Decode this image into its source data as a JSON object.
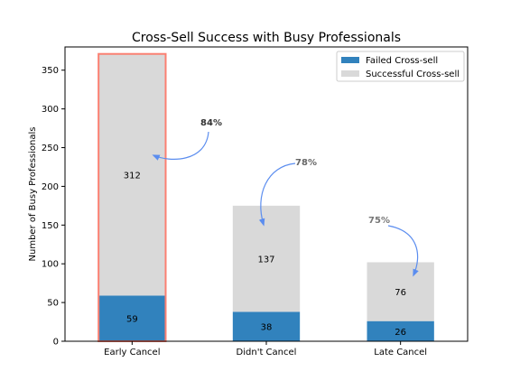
{
  "chart_data": {
    "type": "bar",
    "stacked": true,
    "title": "Cross-Sell Success with Busy Professionals",
    "xlabel": "",
    "ylabel": "Number of Busy Professionals",
    "categories": [
      "Early Cancel",
      "Didn't Cancel",
      "Late Cancel"
    ],
    "series": [
      {
        "name": "Failed Cross-sell",
        "values": [
          59,
          38,
          26
        ],
        "color": "#3182bd"
      },
      {
        "name": "Successful Cross-sell",
        "values": [
          312,
          137,
          76
        ],
        "color": "#d9d9d9"
      }
    ],
    "ylim": [
      0,
      380
    ],
    "yticks": [
      0,
      50,
      100,
      150,
      200,
      250,
      300,
      350
    ],
    "grid": false,
    "legend_position": "top-right",
    "highlight": {
      "category": "Early Cancel",
      "color": "#fb8072"
    },
    "annotations": [
      {
        "text": "84%",
        "category": "Early Cancel",
        "color": "#333333"
      },
      {
        "text": "78%",
        "category": "Didn't Cancel",
        "color": "#666666"
      },
      {
        "text": "75%",
        "category": "Late Cancel",
        "color": "#777777"
      }
    ],
    "arrow_color": "#5b8def"
  }
}
